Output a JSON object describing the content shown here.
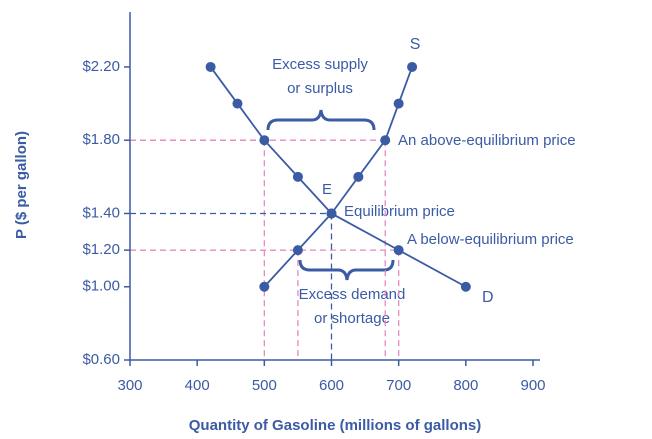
{
  "chart_data": {
    "type": "line",
    "xlabel": "Quantity of Gasoline (millions of gallons)",
    "ylabel": "P ($ per gallon)",
    "xlim": [
      300,
      900
    ],
    "xticks": [
      300,
      400,
      500,
      600,
      700,
      800,
      900
    ],
    "ylim": [
      0.6,
      2.5
    ],
    "yticks": [
      {
        "value": 0.6,
        "label": "$0.60"
      },
      {
        "value": 1.0,
        "label": "$1.00"
      },
      {
        "value": 1.2,
        "label": "$1.20"
      },
      {
        "value": 1.4,
        "label": "$1.40"
      },
      {
        "value": 1.8,
        "label": "$1.80"
      },
      {
        "value": 2.2,
        "label": "$2.20"
      }
    ],
    "series": [
      {
        "name": "D",
        "color": "#3b5ba5",
        "x": [
          420,
          460,
          500,
          550,
          600,
          700,
          800
        ],
        "values": [
          2.2,
          2.0,
          1.8,
          1.6,
          1.4,
          1.2,
          1.0
        ]
      },
      {
        "name": "S",
        "color": "#3b5ba5",
        "x": [
          500,
          550,
          600,
          640,
          680,
          700,
          720
        ],
        "values": [
          1.0,
          1.2,
          1.4,
          1.6,
          1.8,
          2.0,
          2.2
        ]
      }
    ],
    "guide_color": "#e58ac0",
    "equilibrium_color": "#3b5ba5",
    "annotations": [
      "Excess supply",
      "or surplus",
      "An above-equilibrium price",
      "E",
      "Equilibrium price",
      "A below-equilibrium price",
      "Excess demand",
      "or shortage"
    ]
  }
}
